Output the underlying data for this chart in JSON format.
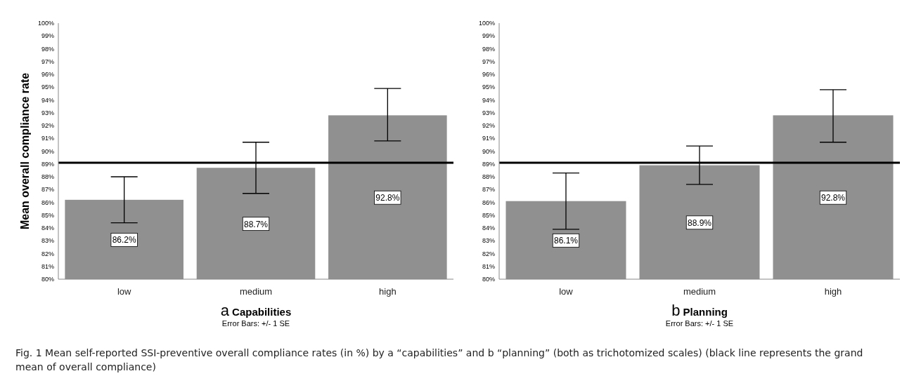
{
  "chart_data": [
    {
      "type": "bar",
      "title": "a Capabilities",
      "subtitle": "Error Bars: +/- 1 SE",
      "ylabel": "Mean overall compliance rate",
      "categories": [
        "low",
        "medium",
        "high"
      ],
      "values": [
        86.2,
        88.7,
        92.8
      ],
      "color": "#909090",
      "errors": [
        [
          84.4,
          88.0
        ],
        [
          86.7,
          90.7
        ],
        [
          90.8,
          94.9
        ]
      ],
      "value_labels": [
        "86.2%",
        "88.7%",
        "92.8%"
      ],
      "ylim": [
        80,
        100
      ],
      "yticks": [
        {
          "value": 80,
          "label": "80%"
        },
        {
          "value": 81,
          "label": "81%"
        },
        {
          "value": 82,
          "label": "82%"
        },
        {
          "value": 83,
          "label": "83%"
        },
        {
          "value": 84,
          "label": "84%"
        },
        {
          "value": 85,
          "label": "85%"
        },
        {
          "value": 86,
          "label": "86%"
        },
        {
          "value": 87,
          "label": "87%"
        },
        {
          "value": 88,
          "label": "88%"
        },
        {
          "value": 89,
          "label": "89%"
        },
        {
          "value": 90,
          "label": "90%"
        },
        {
          "value": 91,
          "label": "91%"
        },
        {
          "value": 92,
          "label": "92%"
        },
        {
          "value": 93,
          "label": "93%"
        },
        {
          "value": 94,
          "label": "94%"
        },
        {
          "value": 95,
          "label": "95%"
        },
        {
          "value": 96,
          "label": "96%"
        },
        {
          "value": 97,
          "label": "97%"
        },
        {
          "value": 98,
          "label": "98%"
        },
        {
          "value": 99,
          "label": "99%"
        },
        {
          "value": 100,
          "label": "100%"
        }
      ],
      "ref_lines": [
        {
          "axis": "y",
          "value": 89.1,
          "color": "#000000"
        }
      ],
      "grid": false,
      "annotations": [
        "Fig. 1  Mean self-reported SSI-preventive overall compliance rates (in %) by a “capabilities” and b “planning” (both as trichotomized scales) (black line represents the grand mean of overall compliance)"
      ]
    },
    {
      "type": "bar",
      "title": "b Planning",
      "subtitle": "Error Bars: +/- 1 SE",
      "categories": [
        "low",
        "medium",
        "high"
      ],
      "values": [
        86.1,
        88.9,
        92.8
      ],
      "color": "#909090",
      "errors": [
        [
          83.9,
          88.3
        ],
        [
          87.4,
          90.4
        ],
        [
          90.7,
          94.8
        ]
      ],
      "value_labels": [
        "86.1%",
        "88.9%",
        "92.8%"
      ],
      "ylim": [
        80,
        100
      ],
      "yticks": [
        {
          "value": 80,
          "label": "80%"
        },
        {
          "value": 81,
          "label": "81%"
        },
        {
          "value": 82,
          "label": "82%"
        },
        {
          "value": 83,
          "label": "83%"
        },
        {
          "value": 84,
          "label": "84%"
        },
        {
          "value": 85,
          "label": "85%"
        },
        {
          "value": 86,
          "label": "86%"
        },
        {
          "value": 87,
          "label": "87%"
        },
        {
          "value": 88,
          "label": "88%"
        },
        {
          "value": 89,
          "label": "89%"
        },
        {
          "value": 90,
          "label": "90%"
        },
        {
          "value": 91,
          "label": "91%"
        },
        {
          "value": 92,
          "label": "92%"
        },
        {
          "value": 93,
          "label": "93%"
        },
        {
          "value": 94,
          "label": "94%"
        },
        {
          "value": 95,
          "label": "95%"
        },
        {
          "value": 96,
          "label": "96%"
        },
        {
          "value": 97,
          "label": "97%"
        },
        {
          "value": 98,
          "label": "98%"
        },
        {
          "value": 99,
          "label": "99%"
        },
        {
          "value": 100,
          "label": "100%"
        }
      ],
      "ref_lines": [
        {
          "axis": "y",
          "value": 89.1,
          "color": "#000000"
        }
      ],
      "grid": false
    }
  ]
}
